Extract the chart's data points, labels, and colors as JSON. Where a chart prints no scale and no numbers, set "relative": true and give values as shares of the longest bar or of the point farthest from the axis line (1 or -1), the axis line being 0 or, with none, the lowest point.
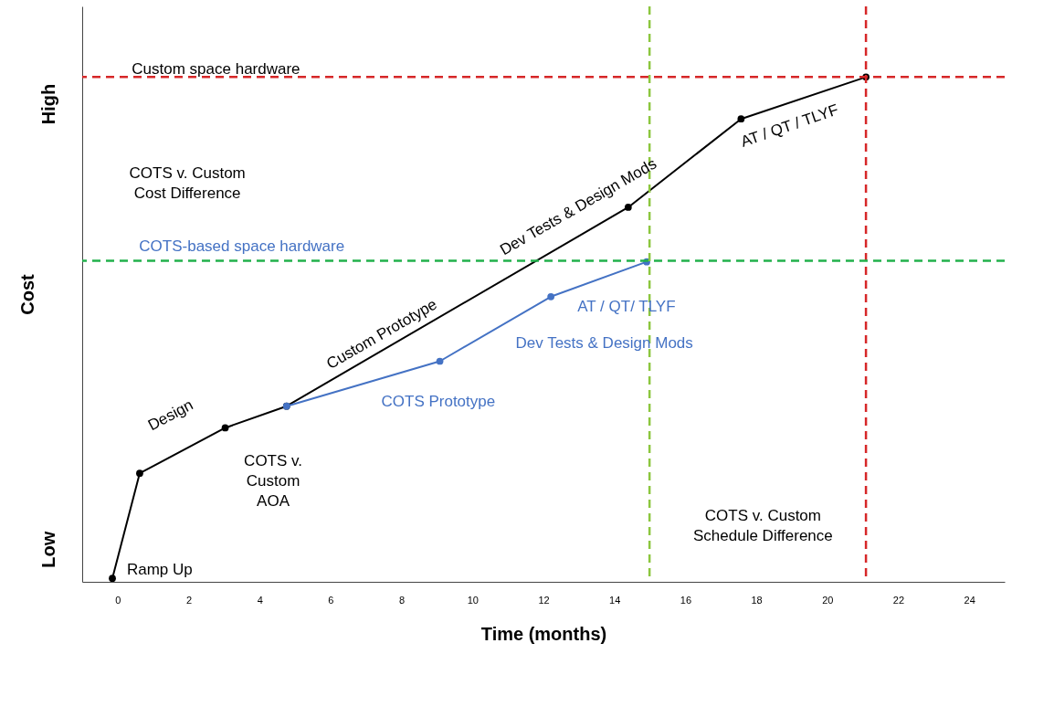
{
  "chart_data": {
    "type": "line",
    "relative": true,
    "xlabel": "Time (months)",
    "ylabel": "Cost",
    "xlim": [
      -1,
      25
    ],
    "xticks": [
      0,
      2,
      4,
      6,
      8,
      10,
      12,
      14,
      16,
      18,
      20,
      22,
      24
    ],
    "series": [
      {
        "color": "#000000",
        "x": [
          -0.15,
          0.62,
          3.03,
          4.76,
          14.39,
          17.57,
          21.09
        ],
        "values": [
          0.007,
          0.215,
          0.305,
          0.348,
          0.742,
          0.917,
          1
        ]
      },
      {
        "color": "#4472c4",
        "x": [
          4.76,
          9.08,
          12.21,
          14.91
        ],
        "values": [
          0.348,
          0.437,
          0.565,
          0.634
        ]
      }
    ],
    "ref_lines": [
      {
        "axis": "y",
        "value": 1,
        "color": "#d62728",
        "line_style": "dashed"
      },
      {
        "axis": "x",
        "value": 21.09,
        "color": "#d62728",
        "line_style": "dashed"
      },
      {
        "axis": "y",
        "value": 0.636,
        "color": "#22b14c",
        "line_style": "dashed"
      },
      {
        "axis": "x",
        "value": 14.99,
        "color": "#8cc63f",
        "line_style": "dashed"
      }
    ],
    "annotations": [
      "High",
      "Low",
      "Custom space hardware",
      "COTS-based space hardware",
      "COTS v. Custom\nCost Difference",
      "Ramp Up",
      "Design",
      "COTS v.\nCustom\nAOA",
      "Custom Prototype",
      "Dev Tests & Design Mods",
      "AT / QT /  TLYF",
      "COTS Prototype",
      "Dev Tests & Design Mods",
      "AT / QT/ TLYF",
      "COTS v. Custom\nSchedule Difference"
    ],
    "marker": "circle",
    "line_style": "solid"
  }
}
